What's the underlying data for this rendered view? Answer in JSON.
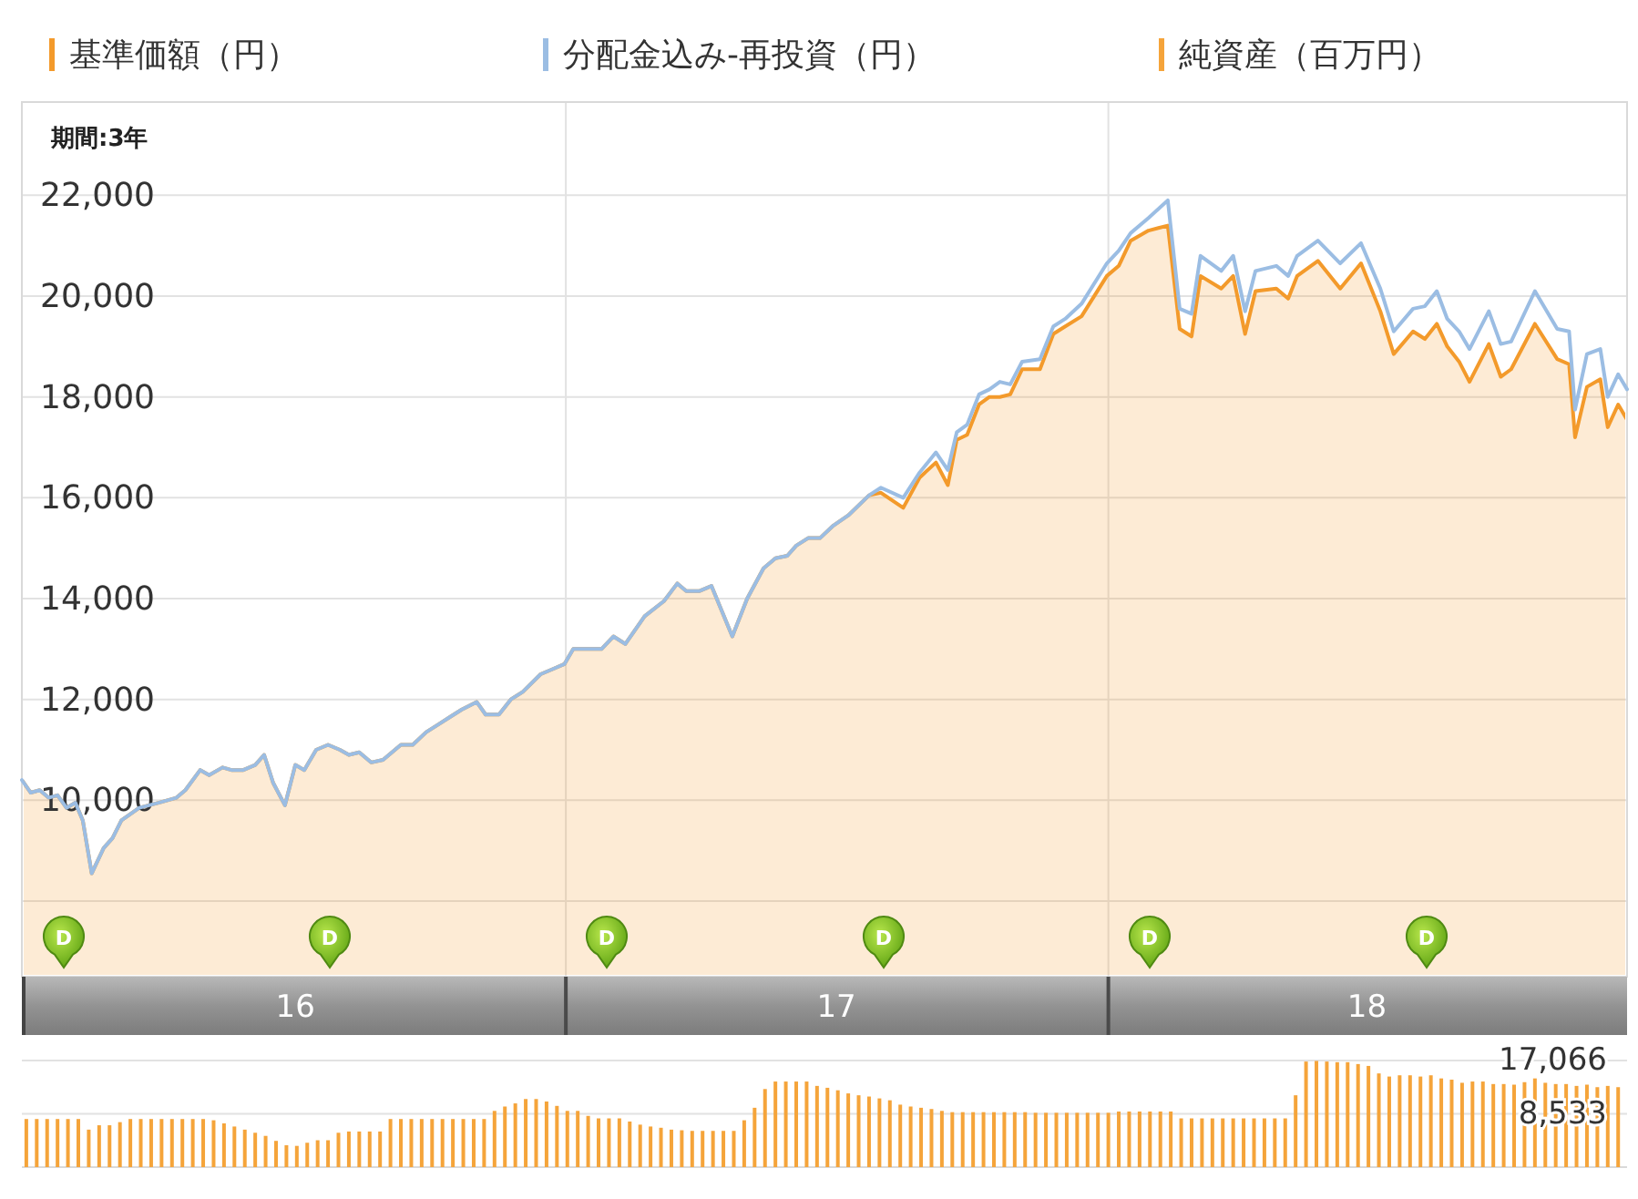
{
  "chart_data": [
    {
      "type": "area",
      "legend": "top",
      "grid": true,
      "annotations": [
        "期間:3年",
        "D",
        "D",
        "D",
        "D",
        "D",
        "D"
      ],
      "xlim": [
        "2016-01-01",
        "2018-12-16"
      ],
      "xticks": [
        {
          "value": "2016-07-03",
          "label": "16"
        },
        {
          "value": "2017-01-01",
          "label": null
        },
        {
          "value": "2017-07-02",
          "label": "17"
        },
        {
          "value": "2018-01-01",
          "label": null
        },
        {
          "value": "2018-06-24",
          "label": "18"
        }
      ],
      "ylim": [
        6500,
        23850
      ],
      "yticks": [
        {
          "value": 8000,
          "label": null
        },
        {
          "value": 10000,
          "label": "10,000"
        },
        {
          "value": 12000,
          "label": "12,000"
        },
        {
          "value": 14000,
          "label": "14,000"
        },
        {
          "value": 16000,
          "label": "16,000"
        },
        {
          "value": 18000,
          "label": "18,000"
        },
        {
          "value": 20000,
          "label": "20,000"
        },
        {
          "value": 22000,
          "label": "22,000"
        }
      ],
      "x": [
        "2016-01-01",
        "2016-01-07",
        "2016-01-13",
        "2016-01-19",
        "2016-01-25",
        "2016-01-31",
        "2016-02-06",
        "2016-02-11",
        "2016-02-17",
        "2016-02-25",
        "2016-03-02",
        "2016-03-08",
        "2016-03-20",
        "2016-04-02",
        "2016-04-14",
        "2016-04-20",
        "2016-04-30",
        "2016-05-06",
        "2016-05-15",
        "2016-05-21",
        "2016-05-29",
        "2016-06-06",
        "2016-06-12",
        "2016-06-18",
        "2016-06-26",
        "2016-07-03",
        "2016-07-09",
        "2016-07-17",
        "2016-07-25",
        "2016-08-02",
        "2016-08-08",
        "2016-08-15",
        "2016-08-23",
        "2016-08-31",
        "2016-09-12",
        "2016-09-20",
        "2016-09-29",
        "2016-10-07",
        "2016-10-15",
        "2016-10-23",
        "2016-11-02",
        "2016-11-08",
        "2016-11-17",
        "2016-11-25",
        "2016-12-03",
        "2016-12-15",
        "2016-12-23",
        "2016-12-31",
        "2017-01-06",
        "2017-01-17",
        "2017-01-25",
        "2017-02-02",
        "2017-02-10",
        "2017-02-23",
        "2017-03-08",
        "2017-03-17",
        "2017-03-23",
        "2017-04-01",
        "2017-04-09",
        "2017-04-23",
        "2017-05-03",
        "2017-05-14",
        "2017-05-22",
        "2017-05-30",
        "2017-06-05",
        "2017-06-13",
        "2017-06-21",
        "2017-06-30",
        "2017-07-10",
        "2017-07-24",
        "2017-08-01",
        "2017-08-16",
        "2017-08-27",
        "2017-09-07",
        "2017-09-15",
        "2017-09-21",
        "2017-09-28",
        "2017-10-06",
        "2017-10-13",
        "2017-10-20",
        "2017-10-27",
        "2017-11-04",
        "2017-11-16",
        "2017-11-25",
        "2017-12-03",
        "2017-12-14",
        "2017-12-31",
        "2018-01-08",
        "2018-01-16",
        "2018-01-28",
        "2018-02-10",
        "2018-02-18",
        "2018-02-26",
        "2018-03-04",
        "2018-03-18",
        "2018-03-26",
        "2018-04-03",
        "2018-04-10",
        "2018-04-24",
        "2018-05-02",
        "2018-05-08",
        "2018-05-22",
        "2018-06-06",
        "2018-06-20",
        "2018-07-03",
        "2018-07-12",
        "2018-07-25",
        "2018-08-02",
        "2018-08-10",
        "2018-08-17",
        "2018-08-25",
        "2018-09-01",
        "2018-09-14",
        "2018-09-22",
        "2018-09-29",
        "2018-10-15",
        "2018-10-30",
        "2018-11-07",
        "2018-11-11",
        "2018-11-19",
        "2018-11-28",
        "2018-12-03",
        "2018-12-10",
        "2018-12-16"
      ],
      "series": [
        {
          "name": "基準価額（円）",
          "color": "#f39a2b",
          "values": [
            10400,
            10150,
            10200,
            10050,
            10100,
            9850,
            9950,
            9600,
            8550,
            9050,
            9250,
            9600,
            9850,
            9950,
            10050,
            10200,
            10600,
            10500,
            10650,
            10600,
            10600,
            10700,
            10900,
            10350,
            9900,
            10700,
            10600,
            11000,
            11100,
            11000,
            10900,
            10950,
            10750,
            10800,
            11100,
            11100,
            11350,
            11500,
            11650,
            11800,
            11950,
            11700,
            11700,
            12000,
            12150,
            12500,
            12600,
            12700,
            13000,
            13000,
            13000,
            13250,
            13100,
            13650,
            13950,
            14300,
            14150,
            14150,
            14250,
            13250,
            14000,
            14600,
            14800,
            14850,
            15050,
            15200,
            15200,
            15450,
            15650,
            16050,
            16100,
            15800,
            16400,
            16700,
            16250,
            17150,
            17250,
            17850,
            18000,
            18000,
            18050,
            18550,
            18550,
            19250,
            19400,
            19600,
            20400,
            20600,
            21100,
            21300,
            21400,
            19350,
            19200,
            20400,
            20150,
            20400,
            19250,
            20100,
            20150,
            19950,
            20400,
            20700,
            20150,
            20650,
            19700,
            18850,
            19300,
            19150,
            19450,
            19000,
            18700,
            18300,
            19050,
            18400,
            18550,
            19450,
            18750,
            18650,
            17200,
            18200,
            18350,
            17400,
            17850,
            17550
          ]
        },
        {
          "name": "分配金込み-再投資（円）",
          "type": "line",
          "color": "#9bbde3",
          "values": [
            10400,
            10150,
            10200,
            10050,
            10100,
            9850,
            9950,
            9600,
            8550,
            9050,
            9250,
            9600,
            9850,
            9950,
            10050,
            10200,
            10600,
            10500,
            10650,
            10600,
            10600,
            10700,
            10900,
            10350,
            9900,
            10700,
            10600,
            11000,
            11100,
            11000,
            10900,
            10950,
            10750,
            10800,
            11100,
            11100,
            11350,
            11500,
            11650,
            11800,
            11950,
            11700,
            11700,
            12000,
            12150,
            12500,
            12600,
            12700,
            13000,
            13000,
            13000,
            13250,
            13100,
            13650,
            13950,
            14300,
            14150,
            14150,
            14250,
            13250,
            14000,
            14600,
            14800,
            14850,
            15050,
            15200,
            15200,
            15450,
            15650,
            16050,
            16200,
            16000,
            16500,
            16900,
            16550,
            17300,
            17450,
            18050,
            18150,
            18300,
            18250,
            18700,
            18750,
            19400,
            19550,
            19850,
            20650,
            20900,
            21250,
            21550,
            21900,
            19750,
            19650,
            20800,
            20500,
            20800,
            19700,
            20500,
            20600,
            20400,
            20800,
            21100,
            20650,
            21050,
            20150,
            19300,
            19750,
            19800,
            20100,
            19550,
            19300,
            18950,
            19700,
            19050,
            19100,
            20100,
            19350,
            19300,
            17750,
            18850,
            18950,
            18000,
            18450,
            18150
          ]
        }
      ]
    },
    {
      "type": "bar",
      "legend": "top",
      "grid": "y",
      "tick_labels": "y",
      "xlim": [
        "2016-01-01",
        "2018-12-16"
      ],
      "ylim": [
        0,
        17066
      ],
      "yticks": [
        {
          "value": 8533,
          "label": "8,533"
        },
        {
          "value": 17066,
          "label": "17,066"
        }
      ],
      "x": [
        "2016-01-04",
        "2016-01-11",
        "2016-01-18",
        "2016-01-25",
        "2016-02-01",
        "2016-02-08",
        "2016-02-15",
        "2016-02-22",
        "2016-02-29",
        "2016-03-07",
        "2016-03-14",
        "2016-03-21",
        "2016-03-28",
        "2016-04-04",
        "2016-04-11",
        "2016-04-18",
        "2016-04-25",
        "2016-05-02",
        "2016-05-09",
        "2016-05-16",
        "2016-05-23",
        "2016-05-30",
        "2016-06-06",
        "2016-06-13",
        "2016-06-20",
        "2016-06-27",
        "2016-07-04",
        "2016-07-11",
        "2016-07-18",
        "2016-07-25",
        "2016-08-01",
        "2016-08-08",
        "2016-08-15",
        "2016-08-22",
        "2016-08-29",
        "2016-09-05",
        "2016-09-12",
        "2016-09-19",
        "2016-09-26",
        "2016-10-03",
        "2016-10-10",
        "2016-10-17",
        "2016-10-24",
        "2016-10-31",
        "2016-11-07",
        "2016-11-14",
        "2016-11-21",
        "2016-11-28",
        "2016-12-05",
        "2016-12-12",
        "2016-12-19",
        "2016-12-26",
        "2017-01-02",
        "2017-01-09",
        "2017-01-16",
        "2017-01-23",
        "2017-01-30",
        "2017-02-06",
        "2017-02-13",
        "2017-02-20",
        "2017-02-27",
        "2017-03-06",
        "2017-03-13",
        "2017-03-20",
        "2017-03-27",
        "2017-04-03",
        "2017-04-10",
        "2017-04-17",
        "2017-04-24",
        "2017-05-01",
        "2017-05-08",
        "2017-05-15",
        "2017-05-22",
        "2017-05-29",
        "2017-06-05",
        "2017-06-12",
        "2017-06-19",
        "2017-06-26",
        "2017-07-03",
        "2017-07-10",
        "2017-07-17",
        "2017-07-24",
        "2017-07-31",
        "2017-08-07",
        "2017-08-14",
        "2017-08-21",
        "2017-08-28",
        "2017-09-04",
        "2017-09-11",
        "2017-09-18",
        "2017-09-25",
        "2017-10-02",
        "2017-10-09",
        "2017-10-16",
        "2017-10-23",
        "2017-10-30",
        "2017-11-06",
        "2017-11-13",
        "2017-11-20",
        "2017-11-27",
        "2017-12-04",
        "2017-12-11",
        "2017-12-18",
        "2017-12-25",
        "2018-01-01",
        "2018-01-08",
        "2018-01-15",
        "2018-01-22",
        "2018-01-29",
        "2018-02-05",
        "2018-02-12",
        "2018-02-19",
        "2018-02-26",
        "2018-03-05",
        "2018-03-12",
        "2018-03-19",
        "2018-03-26",
        "2018-04-02",
        "2018-04-09",
        "2018-04-16",
        "2018-04-23",
        "2018-04-30",
        "2018-05-07",
        "2018-05-14",
        "2018-05-21",
        "2018-05-28",
        "2018-06-04",
        "2018-06-11",
        "2018-06-18",
        "2018-06-25",
        "2018-07-02",
        "2018-07-09",
        "2018-07-16",
        "2018-07-23",
        "2018-07-30",
        "2018-08-06",
        "2018-08-13",
        "2018-08-20",
        "2018-08-27",
        "2018-09-03",
        "2018-09-10",
        "2018-09-17",
        "2018-09-24",
        "2018-10-01",
        "2018-10-08",
        "2018-10-15",
        "2018-10-22",
        "2018-10-29",
        "2018-11-05",
        "2018-11-12",
        "2018-11-19",
        "2018-11-26",
        "2018-12-03",
        "2018-12-10"
      ],
      "series": [
        {
          "name": "純資産（百万円）",
          "color": "#f5a43a",
          "values": [
            7700,
            7700,
            7700,
            7700,
            7700,
            7700,
            6000,
            6700,
            6700,
            7200,
            7700,
            7700,
            7700,
            7700,
            7700,
            7700,
            7700,
            7700,
            7500,
            7000,
            6500,
            6000,
            5500,
            5000,
            4200,
            3500,
            3400,
            3900,
            4300,
            4300,
            5500,
            5700,
            5700,
            5700,
            5700,
            7700,
            7700,
            7700,
            7700,
            7700,
            7700,
            7700,
            7700,
            7700,
            7700,
            9000,
            9700,
            10200,
            10900,
            10900,
            10500,
            9800,
            9000,
            9000,
            8200,
            7800,
            7800,
            7800,
            7300,
            6800,
            6500,
            6300,
            6000,
            5900,
            5800,
            5800,
            5800,
            5800,
            5800,
            7500,
            9500,
            12500,
            13700,
            13700,
            13700,
            13700,
            13000,
            12700,
            12300,
            11800,
            11500,
            11300,
            11000,
            10700,
            10000,
            9700,
            9500,
            9300,
            9000,
            8800,
            8800,
            8800,
            8800,
            8800,
            8800,
            8800,
            8800,
            8700,
            8700,
            8700,
            8700,
            8700,
            8700,
            8700,
            8700,
            8900,
            8900,
            8900,
            8900,
            8900,
            8900,
            7800,
            7800,
            7800,
            7800,
            7800,
            7800,
            7800,
            7800,
            7800,
            7800,
            7800,
            11500,
            16900,
            17000,
            16900,
            16800,
            16800,
            16500,
            16200,
            15000,
            14500,
            14700,
            14700,
            14500,
            14700,
            14200,
            14000,
            13500,
            13700,
            13700,
            13300,
            13300,
            13200,
            13600,
            14200,
            13500,
            13300,
            13300,
            13000,
            13200,
            12800,
            13000,
            12800
          ]
        }
      ]
    }
  ]
}
